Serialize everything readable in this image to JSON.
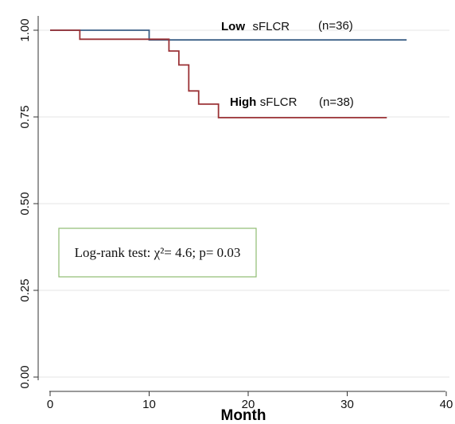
{
  "chart_data": {
    "type": "line",
    "step": true,
    "title": "",
    "xlabel": "Month",
    "ylabel": "",
    "xlim": [
      0,
      40
    ],
    "ylim": [
      0,
      1
    ],
    "xticks": [
      "0",
      "10",
      "20",
      "30",
      "40"
    ],
    "xtick_values": [
      0,
      10,
      20,
      30,
      40
    ],
    "yticks": [
      "0.00",
      "0.25",
      "0.50",
      "0.75",
      "1.00"
    ],
    "ytick_values": [
      0,
      0.25,
      0.5,
      0.75,
      1.0
    ],
    "grid": "horizontal",
    "series": [
      {
        "color": "#3b5f86",
        "label_bold": "Low",
        "label_rest": "sFLCR",
        "label_n": "(n=36)",
        "x": [
          0,
          10,
          36
        ],
        "y": [
          1.0,
          0.972,
          0.972
        ]
      },
      {
        "color": "#9b3236",
        "label_bold": "High",
        "label_rest": "sFLCR",
        "label_n": "(n=38)",
        "x": [
          0,
          3,
          12,
          13,
          14,
          15,
          17,
          34
        ],
        "y": [
          1.0,
          0.974,
          0.94,
          0.9,
          0.825,
          0.787,
          0.748,
          0.748
        ]
      }
    ],
    "annotation": {
      "text": "Log-rank test: χ²= 4.6; p= 0.03",
      "box_color": "#8fbc72"
    }
  }
}
